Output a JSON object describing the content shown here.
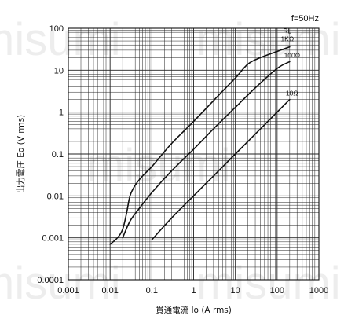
{
  "frequency_note": "f=50Hz",
  "watermark": "misumi",
  "chart_data": {
    "type": "line",
    "title": "",
    "xlabel": "貫通電流 Io (A rms)",
    "ylabel": "出力電圧 Eo (V rms)",
    "xscale": "log",
    "yscale": "log",
    "xlim": [
      0.001,
      1000
    ],
    "ylim": [
      0.0001,
      100
    ],
    "x_ticks": [
      "0.001",
      "0.01",
      "0.1",
      "1",
      "10",
      "100",
      "1000"
    ],
    "y_ticks": [
      "0.0001",
      "0.001",
      "0.01",
      "0.1",
      "1",
      "10",
      "100"
    ],
    "grid": true,
    "legend_title": "RL",
    "series": [
      {
        "name": "1KΩ",
        "x": [
          0.01,
          0.015,
          0.02,
          0.025,
          0.03,
          0.04,
          0.06,
          0.1,
          0.3,
          1,
          5,
          10,
          20,
          40,
          100,
          200
        ],
        "y": [
          0.0007,
          0.001,
          0.0016,
          0.004,
          0.01,
          0.018,
          0.03,
          0.05,
          0.18,
          0.6,
          3.2,
          6.5,
          14,
          20,
          28,
          36
        ]
      },
      {
        "name": "100Ω",
        "x": [
          0.02,
          0.03,
          0.05,
          0.1,
          0.3,
          1,
          3,
          10,
          30,
          100,
          200
        ],
        "y": [
          0.001,
          0.0025,
          0.005,
          0.012,
          0.04,
          0.13,
          0.4,
          1.3,
          3.8,
          11,
          16
        ]
      },
      {
        "name": "10Ω",
        "x": [
          0.1,
          0.3,
          1,
          3,
          10,
          30,
          100,
          200
        ],
        "y": [
          0.0009,
          0.003,
          0.01,
          0.03,
          0.1,
          0.3,
          1.0,
          2.0
        ]
      }
    ]
  }
}
